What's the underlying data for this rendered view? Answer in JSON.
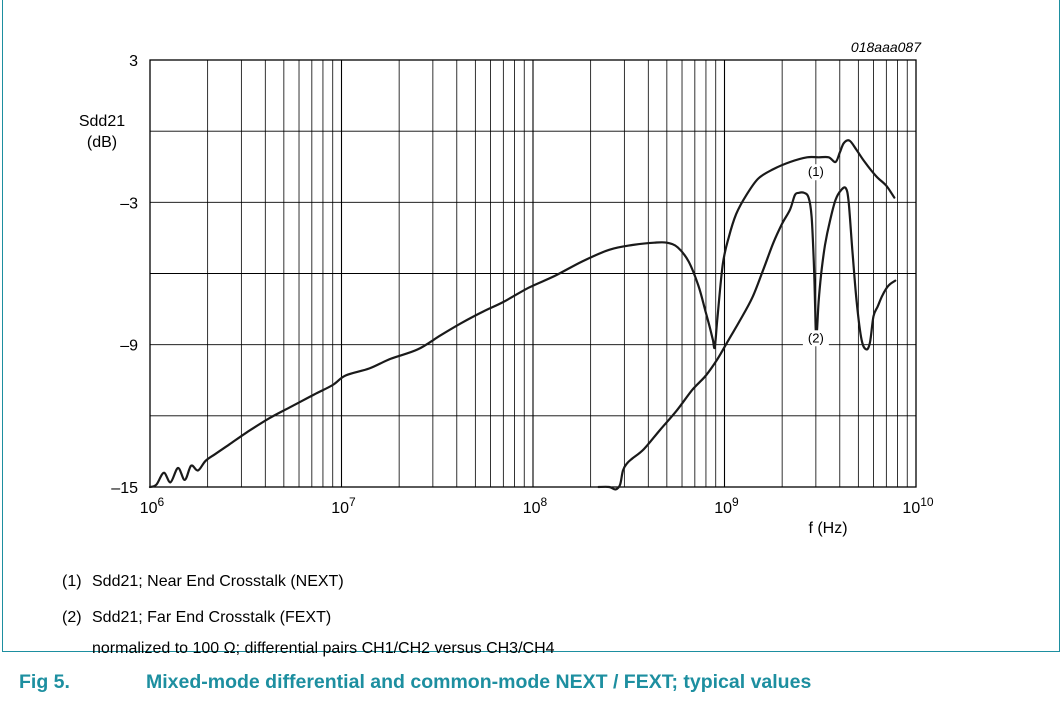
{
  "figure_code": "018aaa087",
  "chart_data": {
    "type": "line",
    "xscale": "log",
    "xlim": [
      1000000,
      10000000000
    ],
    "ylim": [
      -15,
      3
    ],
    "xlabel": "f (Hz)",
    "ylabel": "Sdd21",
    "ylabel_unit": "(dB)",
    "x_ticks": [
      {
        "mantissa": "10",
        "exp": "6"
      },
      {
        "mantissa": "10",
        "exp": "7"
      },
      {
        "mantissa": "10",
        "exp": "8"
      },
      {
        "mantissa": "10",
        "exp": "9"
      },
      {
        "mantissa": "10",
        "exp": "10"
      }
    ],
    "y_ticks": [
      "3",
      "–3",
      "–9",
      "–15"
    ],
    "grid": true,
    "series": [
      {
        "name": "(1)",
        "label_at": [
          3000000000,
          -1.9
        ],
        "x": [
          1000000,
          1080000,
          1180000,
          1280000,
          1400000,
          1520000,
          1640000,
          1780000,
          1950000,
          2200000,
          2600000,
          3200000,
          4200000,
          5500000,
          7200000,
          9000000,
          10500000,
          14000000,
          18000000,
          25000000,
          33000000,
          42000000,
          55000000,
          70000000,
          95000000,
          130000000,
          180000000,
          250000000,
          330000000,
          430000000,
          500000000,
          570000000,
          650000000,
          730000000,
          790000000,
          840000000,
          870000000,
          890000000,
          920000000,
          980000000,
          1050000000,
          1150000000,
          1300000000,
          1500000000,
          1800000000,
          2200000000,
          2700000000,
          3100000000,
          3500000000,
          3800000000,
          4000000000,
          4200000000,
          4500000000,
          4900000000,
          5400000000,
          6200000000,
          7000000000,
          7700000000
        ],
        "y": [
          -15.0,
          -14.9,
          -14.4,
          -14.8,
          -14.2,
          -14.7,
          -14.1,
          -14.3,
          -13.9,
          -13.6,
          -13.2,
          -12.7,
          -12.1,
          -11.6,
          -11.1,
          -10.7,
          -10.3,
          -10.0,
          -9.6,
          -9.2,
          -8.6,
          -8.1,
          -7.6,
          -7.2,
          -6.6,
          -6.1,
          -5.5,
          -5.0,
          -4.8,
          -4.7,
          -4.7,
          -4.9,
          -5.5,
          -6.5,
          -7.5,
          -8.3,
          -8.8,
          -9.1,
          -7.8,
          -5.6,
          -4.5,
          -3.5,
          -2.7,
          -2.0,
          -1.6,
          -1.3,
          -1.1,
          -1.1,
          -1.1,
          -1.3,
          -0.9,
          -0.5,
          -0.4,
          -0.8,
          -1.3,
          -1.9,
          -2.3,
          -2.8
        ]
      },
      {
        "name": "(2)",
        "label_at": [
          3000000000,
          -8.9
        ],
        "x": [
          220000000,
          250000000,
          270000000,
          285000000,
          295000000,
          310000000,
          330000000,
          380000000,
          460000000,
          560000000,
          680000000,
          800000000,
          920000000,
          1050000000,
          1200000000,
          1400000000,
          1600000000,
          1800000000,
          2000000000,
          2200000000,
          2330000000,
          2450000000,
          2600000000,
          2750000000,
          2850000000,
          2920000000,
          2970000000,
          3000000000,
          3040000000,
          3100000000,
          3200000000,
          3350000000,
          3550000000,
          3800000000,
          4050000000,
          4300000000,
          4450000000,
          4650000000,
          4900000000,
          5200000000,
          5500000000,
          5750000000,
          6000000000,
          6300000000,
          6700000000,
          7200000000,
          7800000000
        ],
        "y": [
          -15.0,
          -15.0,
          -15.1,
          -14.9,
          -14.3,
          -14.0,
          -13.8,
          -13.4,
          -12.6,
          -11.8,
          -10.9,
          -10.3,
          -9.6,
          -8.8,
          -8.0,
          -7.0,
          -5.8,
          -4.7,
          -3.9,
          -3.3,
          -2.7,
          -2.6,
          -2.6,
          -2.8,
          -3.6,
          -5.3,
          -7.2,
          -8.5,
          -8.4,
          -7.2,
          -6.0,
          -4.8,
          -3.8,
          -2.9,
          -2.5,
          -2.4,
          -3.0,
          -5.0,
          -7.2,
          -8.8,
          -9.2,
          -8.9,
          -7.8,
          -7.4,
          -6.9,
          -6.5,
          -6.3
        ]
      }
    ]
  },
  "notes": [
    {
      "num": "(1)",
      "text": "Sdd21; Near End Crosstalk (NEXT)"
    },
    {
      "num": "(2)",
      "text": "Sdd21; Far End Crosstalk (FEXT)"
    },
    {
      "num": "",
      "text": "normalized to 100 Ω; differential pairs CH1/CH2 versus CH3/CH4"
    }
  ],
  "caption": {
    "label": "Fig 5.",
    "text": "Mixed-mode differential and common-mode NEXT / FEXT; typical values"
  },
  "colors": {
    "frame": "#1d8fa0",
    "caption": "#1d8fa0",
    "curve": "#1a1a1a",
    "grid": "#000000"
  }
}
